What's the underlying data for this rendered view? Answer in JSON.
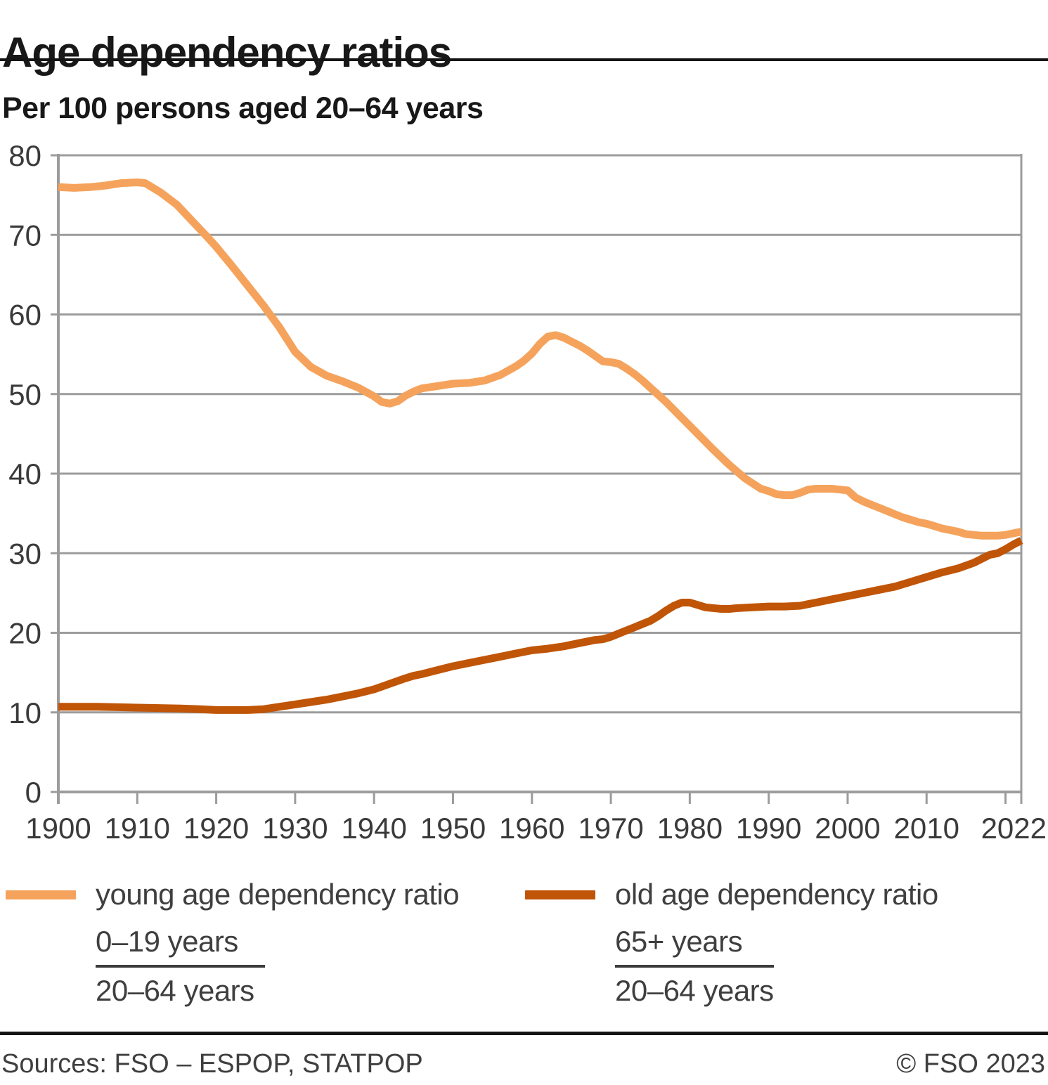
{
  "title": "Age dependency ratios",
  "subtitle": "Per 100 persons aged 20–64 years",
  "footer": {
    "sources": "Sources: FSO – ESPOP, STATPOP",
    "copyright": "© FSO 2023"
  },
  "legend": [
    {
      "label": "young age dependency ratio",
      "numerator": "0–19 years",
      "denominator": "20–64 years",
      "color": "#f5a35c"
    },
    {
      "label": "old age dependency ratio",
      "numerator": "65+ years",
      "denominator": "20–64 years",
      "color": "#c05507"
    }
  ],
  "chart_data": {
    "type": "line",
    "title": "Age dependency ratios",
    "subtitle": "Per 100 persons aged 20–64 years",
    "xlabel": "",
    "ylabel": "Per 100 persons aged 20–64 years",
    "xlim": [
      1900,
      2022
    ],
    "ylim": [
      0,
      80
    ],
    "grid": "horizontal",
    "legend_position": "bottom",
    "colors": {
      "gridline": "#9c9c9c",
      "axis": "#9c9c9c",
      "tick_label": "#3a3a3a"
    },
    "x_axis": {
      "ticks": [
        1900,
        1910,
        1920,
        1930,
        1940,
        1950,
        1960,
        1970,
        1980,
        1990,
        2000,
        2010,
        2020,
        2022
      ],
      "labels": [
        1900,
        1910,
        1920,
        1930,
        1940,
        1950,
        1960,
        1970,
        1980,
        1990,
        2000,
        2010,
        2022
      ]
    },
    "y_axis": {
      "ticks": [
        0,
        10,
        20,
        30,
        40,
        50,
        60,
        70,
        80
      ]
    },
    "series": [
      {
        "name": "young age dependency ratio",
        "color": "#f5a35c",
        "points": [
          [
            1900,
            76.0
          ],
          [
            1902,
            75.9
          ],
          [
            1904,
            76.0
          ],
          [
            1906,
            76.2
          ],
          [
            1908,
            76.5
          ],
          [
            1910,
            76.6
          ],
          [
            1911,
            76.5
          ],
          [
            1913,
            75.3
          ],
          [
            1915,
            73.8
          ],
          [
            1917,
            71.7
          ],
          [
            1919,
            69.6
          ],
          [
            1920,
            68.5
          ],
          [
            1922,
            66.1
          ],
          [
            1924,
            63.6
          ],
          [
            1926,
            61.1
          ],
          [
            1928,
            58.4
          ],
          [
            1930,
            55.3
          ],
          [
            1932,
            53.4
          ],
          [
            1934,
            52.3
          ],
          [
            1936,
            51.6
          ],
          [
            1938,
            50.8
          ],
          [
            1940,
            49.7
          ],
          [
            1941,
            49.0
          ],
          [
            1942,
            48.8
          ],
          [
            1943,
            49.1
          ],
          [
            1944,
            49.8
          ],
          [
            1945,
            50.3
          ],
          [
            1946,
            50.7
          ],
          [
            1948,
            51.0
          ],
          [
            1950,
            51.3
          ],
          [
            1952,
            51.4
          ],
          [
            1954,
            51.7
          ],
          [
            1956,
            52.4
          ],
          [
            1958,
            53.5
          ],
          [
            1959,
            54.2
          ],
          [
            1960,
            55.1
          ],
          [
            1961,
            56.3
          ],
          [
            1962,
            57.2
          ],
          [
            1963,
            57.4
          ],
          [
            1964,
            57.1
          ],
          [
            1965,
            56.6
          ],
          [
            1966,
            56.1
          ],
          [
            1967,
            55.5
          ],
          [
            1968,
            54.8
          ],
          [
            1969,
            54.1
          ],
          [
            1970,
            54.0
          ],
          [
            1971,
            53.8
          ],
          [
            1972,
            53.2
          ],
          [
            1973,
            52.5
          ],
          [
            1974,
            51.7
          ],
          [
            1975,
            50.8
          ],
          [
            1977,
            49.0
          ],
          [
            1979,
            47.0
          ],
          [
            1981,
            45.0
          ],
          [
            1983,
            43.0
          ],
          [
            1985,
            41.1
          ],
          [
            1987,
            39.4
          ],
          [
            1989,
            38.1
          ],
          [
            1990,
            37.8
          ],
          [
            1991,
            37.4
          ],
          [
            1992,
            37.3
          ],
          [
            1993,
            37.3
          ],
          [
            1994,
            37.6
          ],
          [
            1995,
            38.0
          ],
          [
            1996,
            38.1
          ],
          [
            1997,
            38.1
          ],
          [
            1998,
            38.1
          ],
          [
            1999,
            38.0
          ],
          [
            2000,
            37.9
          ],
          [
            2001,
            37.0
          ],
          [
            2002,
            36.5
          ],
          [
            2003,
            36.1
          ],
          [
            2004,
            35.7
          ],
          [
            2005,
            35.3
          ],
          [
            2006,
            34.9
          ],
          [
            2007,
            34.5
          ],
          [
            2008,
            34.2
          ],
          [
            2009,
            33.9
          ],
          [
            2010,
            33.7
          ],
          [
            2011,
            33.4
          ],
          [
            2012,
            33.1
          ],
          [
            2013,
            32.9
          ],
          [
            2014,
            32.7
          ],
          [
            2015,
            32.4
          ],
          [
            2016,
            32.3
          ],
          [
            2017,
            32.2
          ],
          [
            2018,
            32.2
          ],
          [
            2019,
            32.2
          ],
          [
            2020,
            32.3
          ],
          [
            2021,
            32.5
          ],
          [
            2022,
            32.7
          ]
        ]
      },
      {
        "name": "old age dependency ratio",
        "color": "#c05507",
        "points": [
          [
            1900,
            10.7
          ],
          [
            1905,
            10.7
          ],
          [
            1910,
            10.6
          ],
          [
            1915,
            10.5
          ],
          [
            1918,
            10.4
          ],
          [
            1920,
            10.3
          ],
          [
            1922,
            10.3
          ],
          [
            1924,
            10.3
          ],
          [
            1926,
            10.4
          ],
          [
            1928,
            10.7
          ],
          [
            1930,
            11.0
          ],
          [
            1932,
            11.3
          ],
          [
            1934,
            11.6
          ],
          [
            1936,
            12.0
          ],
          [
            1938,
            12.4
          ],
          [
            1940,
            12.9
          ],
          [
            1942,
            13.6
          ],
          [
            1944,
            14.3
          ],
          [
            1945,
            14.6
          ],
          [
            1946,
            14.8
          ],
          [
            1948,
            15.3
          ],
          [
            1950,
            15.8
          ],
          [
            1952,
            16.2
          ],
          [
            1954,
            16.6
          ],
          [
            1956,
            17.0
          ],
          [
            1958,
            17.4
          ],
          [
            1960,
            17.8
          ],
          [
            1962,
            18.0
          ],
          [
            1964,
            18.3
          ],
          [
            1966,
            18.7
          ],
          [
            1968,
            19.1
          ],
          [
            1969,
            19.2
          ],
          [
            1970,
            19.5
          ],
          [
            1971,
            19.9
          ],
          [
            1972,
            20.3
          ],
          [
            1973,
            20.7
          ],
          [
            1974,
            21.1
          ],
          [
            1975,
            21.5
          ],
          [
            1976,
            22.1
          ],
          [
            1977,
            22.8
          ],
          [
            1978,
            23.4
          ],
          [
            1979,
            23.8
          ],
          [
            1980,
            23.8
          ],
          [
            1981,
            23.5
          ],
          [
            1982,
            23.2
          ],
          [
            1983,
            23.1
          ],
          [
            1984,
            23.0
          ],
          [
            1985,
            23.0
          ],
          [
            1986,
            23.1
          ],
          [
            1988,
            23.2
          ],
          [
            1990,
            23.3
          ],
          [
            1992,
            23.3
          ],
          [
            1994,
            23.4
          ],
          [
            1995,
            23.6
          ],
          [
            1996,
            23.8
          ],
          [
            1998,
            24.2
          ],
          [
            2000,
            24.6
          ],
          [
            2002,
            25.0
          ],
          [
            2004,
            25.4
          ],
          [
            2006,
            25.8
          ],
          [
            2008,
            26.4
          ],
          [
            2010,
            27.0
          ],
          [
            2012,
            27.6
          ],
          [
            2014,
            28.1
          ],
          [
            2016,
            28.8
          ],
          [
            2018,
            29.8
          ],
          [
            2019,
            30.0
          ],
          [
            2020,
            30.5
          ],
          [
            2021,
            31.1
          ],
          [
            2022,
            31.6
          ]
        ]
      }
    ]
  }
}
